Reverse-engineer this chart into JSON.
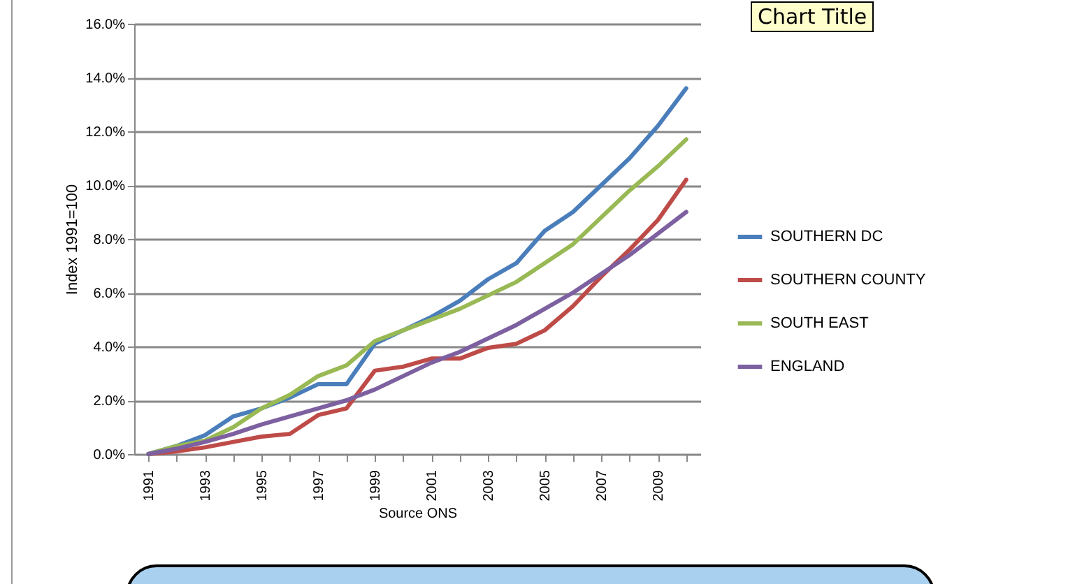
{
  "chart_data": {
    "type": "line",
    "title": "Chart Title",
    "xlabel": "Source ONS",
    "ylabel": "Index 1991=100",
    "categories": [
      "1991",
      null,
      "1993",
      null,
      "1995",
      null,
      "1997",
      null,
      "1999",
      null,
      "2001",
      null,
      "2003",
      null,
      "2005",
      null,
      "2007",
      null,
      "2009",
      null
    ],
    "series": [
      {
        "name": "SOUTHERN DC",
        "color": "#4a7ebb",
        "values": [
          0,
          0.3,
          0.7,
          1.4,
          1.7,
          2.1,
          2.6,
          2.6,
          4.1,
          4.6,
          5.1,
          5.7,
          6.5,
          7.1,
          8.3,
          9.0,
          10.0,
          11.0,
          12.2,
          13.6
        ]
      },
      {
        "name": "SOUTHERN COUNTY",
        "color": "#be4b48",
        "values": [
          0,
          0.1,
          0.25,
          0.45,
          0.65,
          0.75,
          1.45,
          1.7,
          3.1,
          3.25,
          3.55,
          3.55,
          3.95,
          4.1,
          4.6,
          5.5,
          6.6,
          7.6,
          8.7,
          10.2
        ]
      },
      {
        "name": "SOUTH EAST",
        "color": "#98b954",
        "values": [
          0,
          0.3,
          0.5,
          1.0,
          1.7,
          2.2,
          2.9,
          3.3,
          4.2,
          4.6,
          5.0,
          5.4,
          5.9,
          6.4,
          7.1,
          7.8,
          8.8,
          9.8,
          10.7,
          11.7
        ]
      },
      {
        "name": "ENGLAND",
        "color": "#7d60a0",
        "values": [
          0,
          0.2,
          0.45,
          0.75,
          1.1,
          1.4,
          1.7,
          2.0,
          2.4,
          2.9,
          3.4,
          3.8,
          4.3,
          4.8,
          5.4,
          6.0,
          6.7,
          7.4,
          8.2,
          9.0
        ]
      }
    ],
    "ylim": [
      0,
      16
    ],
    "yticks": [
      {
        "value": 0,
        "label": "0.0%"
      },
      {
        "value": 2,
        "label": "2.0%"
      },
      {
        "value": 4,
        "label": "4.0%"
      },
      {
        "value": 6,
        "label": "6.0%"
      },
      {
        "value": 8,
        "label": "8.0%"
      },
      {
        "value": 10,
        "label": "10.0%"
      },
      {
        "value": 12,
        "label": "12.0%"
      },
      {
        "value": 14,
        "label": "14.0%"
      },
      {
        "value": 16,
        "label": "16.0%"
      }
    ],
    "grid": "y",
    "legend": "right",
    "marker": "none",
    "line_style": "solid"
  }
}
